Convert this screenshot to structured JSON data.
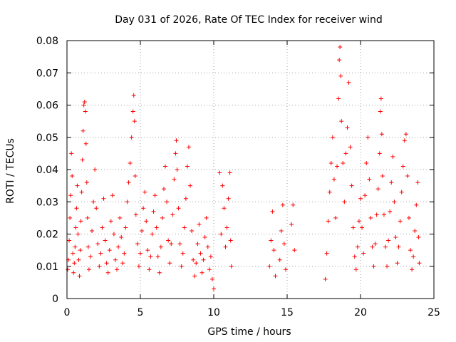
{
  "chart_data": {
    "type": "scatter",
    "title": "Day 031 of 2026, Rate Of TEC Index for receiver wind",
    "xlabel": "GPS time / hours",
    "ylabel": "ROTI / TECUs",
    "xlim": [
      0,
      25
    ],
    "ylim": [
      0,
      0.08
    ],
    "xticks": [
      0,
      5,
      10,
      15,
      20,
      25
    ],
    "yticks": [
      0,
      0.01,
      0.02,
      0.03,
      0.04,
      0.05,
      0.06,
      0.07,
      0.08
    ],
    "xtick_labels": [
      "0",
      "5",
      "10",
      "15",
      "20",
      "25"
    ],
    "ytick_labels": [
      "0",
      "0.01",
      "0.02",
      "0.03",
      "0.04",
      "0.05",
      "0.06",
      "0.07",
      "0.08"
    ],
    "grid": true,
    "marker": "+",
    "series_color": "#ff0000",
    "series": [
      {
        "points": [
          [
            0.05,
            0.009
          ],
          [
            0.1,
            0.012
          ],
          [
            0.15,
            0.018
          ],
          [
            0.2,
            0.025
          ],
          [
            0.25,
            0.032
          ],
          [
            0.3,
            0.045
          ],
          [
            0.35,
            0.038
          ],
          [
            0.4,
            0.014
          ],
          [
            0.45,
            0.008
          ],
          [
            0.5,
            0.011
          ],
          [
            0.55,
            0.016
          ],
          [
            0.6,
            0.022
          ],
          [
            0.65,
            0.028
          ],
          [
            0.7,
            0.035
          ],
          [
            0.75,
            0.02
          ],
          [
            0.8,
            0.012
          ],
          [
            0.85,
            0.007
          ],
          [
            0.9,
            0.015
          ],
          [
            0.95,
            0.024
          ],
          [
            1.0,
            0.033
          ],
          [
            1.05,
            0.043
          ],
          [
            1.1,
            0.052
          ],
          [
            1.15,
            0.06
          ],
          [
            1.2,
            0.061
          ],
          [
            1.25,
            0.058
          ],
          [
            1.3,
            0.048
          ],
          [
            1.35,
            0.036
          ],
          [
            1.4,
            0.025
          ],
          [
            1.45,
            0.016
          ],
          [
            1.5,
            0.009
          ],
          [
            1.6,
            0.013
          ],
          [
            1.7,
            0.021
          ],
          [
            1.8,
            0.03
          ],
          [
            1.9,
            0.04
          ],
          [
            2.0,
            0.028
          ],
          [
            2.1,
            0.017
          ],
          [
            2.2,
            0.01
          ],
          [
            2.3,
            0.014
          ],
          [
            2.4,
            0.022
          ],
          [
            2.5,
            0.031
          ],
          [
            2.6,
            0.018
          ],
          [
            2.7,
            0.011
          ],
          [
            2.8,
            0.008
          ],
          [
            2.9,
            0.015
          ],
          [
            3.0,
            0.024
          ],
          [
            3.1,
            0.032
          ],
          [
            3.2,
            0.02
          ],
          [
            3.3,
            0.012
          ],
          [
            3.4,
            0.009
          ],
          [
            3.5,
            0.016
          ],
          [
            3.6,
            0.025
          ],
          [
            3.7,
            0.019
          ],
          [
            3.8,
            0.011
          ],
          [
            3.9,
            0.014
          ],
          [
            4.0,
            0.022
          ],
          [
            4.1,
            0.03
          ],
          [
            4.2,
            0.036
          ],
          [
            4.3,
            0.042
          ],
          [
            4.4,
            0.05
          ],
          [
            4.5,
            0.058
          ],
          [
            4.55,
            0.063
          ],
          [
            4.6,
            0.055
          ],
          [
            4.65,
            0.038
          ],
          [
            4.7,
            0.026
          ],
          [
            4.8,
            0.017
          ],
          [
            4.9,
            0.01
          ],
          [
            5.0,
            0.014
          ],
          [
            5.1,
            0.021
          ],
          [
            5.2,
            0.028
          ],
          [
            5.3,
            0.033
          ],
          [
            5.4,
            0.024
          ],
          [
            5.5,
            0.015
          ],
          [
            5.6,
            0.009
          ],
          [
            5.7,
            0.013
          ],
          [
            5.8,
            0.02
          ],
          [
            5.9,
            0.027
          ],
          [
            6.0,
            0.032
          ],
          [
            6.1,
            0.022
          ],
          [
            6.2,
            0.013
          ],
          [
            6.3,
            0.008
          ],
          [
            6.4,
            0.016
          ],
          [
            6.5,
            0.025
          ],
          [
            6.6,
            0.034
          ],
          [
            6.7,
            0.041
          ],
          [
            6.8,
            0.03
          ],
          [
            6.9,
            0.018
          ],
          [
            7.0,
            0.011
          ],
          [
            7.1,
            0.017
          ],
          [
            7.2,
            0.026
          ],
          [
            7.3,
            0.037
          ],
          [
            7.4,
            0.045
          ],
          [
            7.45,
            0.049
          ],
          [
            7.5,
            0.04
          ],
          [
            7.6,
            0.028
          ],
          [
            7.7,
            0.017
          ],
          [
            7.8,
            0.01
          ],
          [
            7.9,
            0.014
          ],
          [
            8.0,
            0.022
          ],
          [
            8.1,
            0.031
          ],
          [
            8.2,
            0.041
          ],
          [
            8.3,
            0.047
          ],
          [
            8.4,
            0.035
          ],
          [
            8.5,
            0.021
          ],
          [
            8.6,
            0.012
          ],
          [
            8.7,
            0.007
          ],
          [
            8.8,
            0.011
          ],
          [
            8.9,
            0.017
          ],
          [
            9.0,
            0.023
          ],
          [
            9.1,
            0.014
          ],
          [
            9.2,
            0.008
          ],
          [
            9.3,
            0.012
          ],
          [
            9.4,
            0.019
          ],
          [
            9.5,
            0.025
          ],
          [
            9.6,
            0.016
          ],
          [
            9.7,
            0.009
          ],
          [
            9.8,
            0.013
          ],
          [
            9.9,
            0.006
          ],
          [
            10.0,
            0.003
          ],
          [
            10.4,
            0.039
          ],
          [
            10.5,
            0.02
          ],
          [
            10.6,
            0.035
          ],
          [
            10.7,
            0.028
          ],
          [
            10.8,
            0.016
          ],
          [
            10.9,
            0.022
          ],
          [
            11.0,
            0.031
          ],
          [
            11.1,
            0.039
          ],
          [
            11.15,
            0.018
          ],
          [
            11.2,
            0.01
          ],
          [
            13.8,
            0.01
          ],
          [
            13.9,
            0.018
          ],
          [
            14.0,
            0.027
          ],
          [
            14.1,
            0.015
          ],
          [
            14.2,
            0.007
          ],
          [
            14.5,
            0.012
          ],
          [
            14.6,
            0.021
          ],
          [
            14.7,
            0.029
          ],
          [
            14.8,
            0.017
          ],
          [
            14.9,
            0.009
          ],
          [
            15.3,
            0.023
          ],
          [
            15.4,
            0.029
          ],
          [
            15.5,
            0.015
          ],
          [
            17.6,
            0.006
          ],
          [
            17.7,
            0.014
          ],
          [
            17.8,
            0.024
          ],
          [
            17.9,
            0.033
          ],
          [
            18.0,
            0.042
          ],
          [
            18.1,
            0.05
          ],
          [
            18.2,
            0.037
          ],
          [
            18.3,
            0.025
          ],
          [
            18.4,
            0.041
          ],
          [
            18.5,
            0.062
          ],
          [
            18.55,
            0.074
          ],
          [
            18.6,
            0.078
          ],
          [
            18.65,
            0.069
          ],
          [
            18.7,
            0.055
          ],
          [
            18.8,
            0.042
          ],
          [
            18.9,
            0.03
          ],
          [
            19.0,
            0.045
          ],
          [
            19.1,
            0.053
          ],
          [
            19.2,
            0.067
          ],
          [
            19.3,
            0.047
          ],
          [
            19.4,
            0.035
          ],
          [
            19.5,
            0.022
          ],
          [
            19.6,
            0.013
          ],
          [
            19.7,
            0.009
          ],
          [
            19.8,
            0.016
          ],
          [
            19.9,
            0.024
          ],
          [
            20.0,
            0.031
          ],
          [
            20.1,
            0.022
          ],
          [
            20.2,
            0.014
          ],
          [
            20.3,
            0.032
          ],
          [
            20.4,
            0.042
          ],
          [
            20.5,
            0.05
          ],
          [
            20.6,
            0.037
          ],
          [
            20.7,
            0.025
          ],
          [
            20.8,
            0.016
          ],
          [
            20.9,
            0.01
          ],
          [
            21.0,
            0.017
          ],
          [
            21.1,
            0.026
          ],
          [
            21.2,
            0.034
          ],
          [
            21.3,
            0.045
          ],
          [
            21.35,
            0.058
          ],
          [
            21.4,
            0.062
          ],
          [
            21.45,
            0.051
          ],
          [
            21.5,
            0.038
          ],
          [
            21.6,
            0.026
          ],
          [
            21.7,
            0.016
          ],
          [
            21.8,
            0.01
          ],
          [
            21.9,
            0.018
          ],
          [
            22.0,
            0.027
          ],
          [
            22.1,
            0.036
          ],
          [
            22.2,
            0.044
          ],
          [
            22.3,
            0.03
          ],
          [
            22.4,
            0.019
          ],
          [
            22.5,
            0.011
          ],
          [
            22.6,
            0.016
          ],
          [
            22.7,
            0.024
          ],
          [
            22.8,
            0.033
          ],
          [
            22.9,
            0.041
          ],
          [
            23.0,
            0.049
          ],
          [
            23.1,
            0.051
          ],
          [
            23.2,
            0.038
          ],
          [
            23.3,
            0.025
          ],
          [
            23.4,
            0.015
          ],
          [
            23.5,
            0.009
          ],
          [
            23.6,
            0.013
          ],
          [
            23.7,
            0.021
          ],
          [
            23.8,
            0.029
          ],
          [
            23.9,
            0.036
          ],
          [
            23.95,
            0.019
          ],
          [
            24.0,
            0.011
          ]
        ]
      }
    ]
  }
}
